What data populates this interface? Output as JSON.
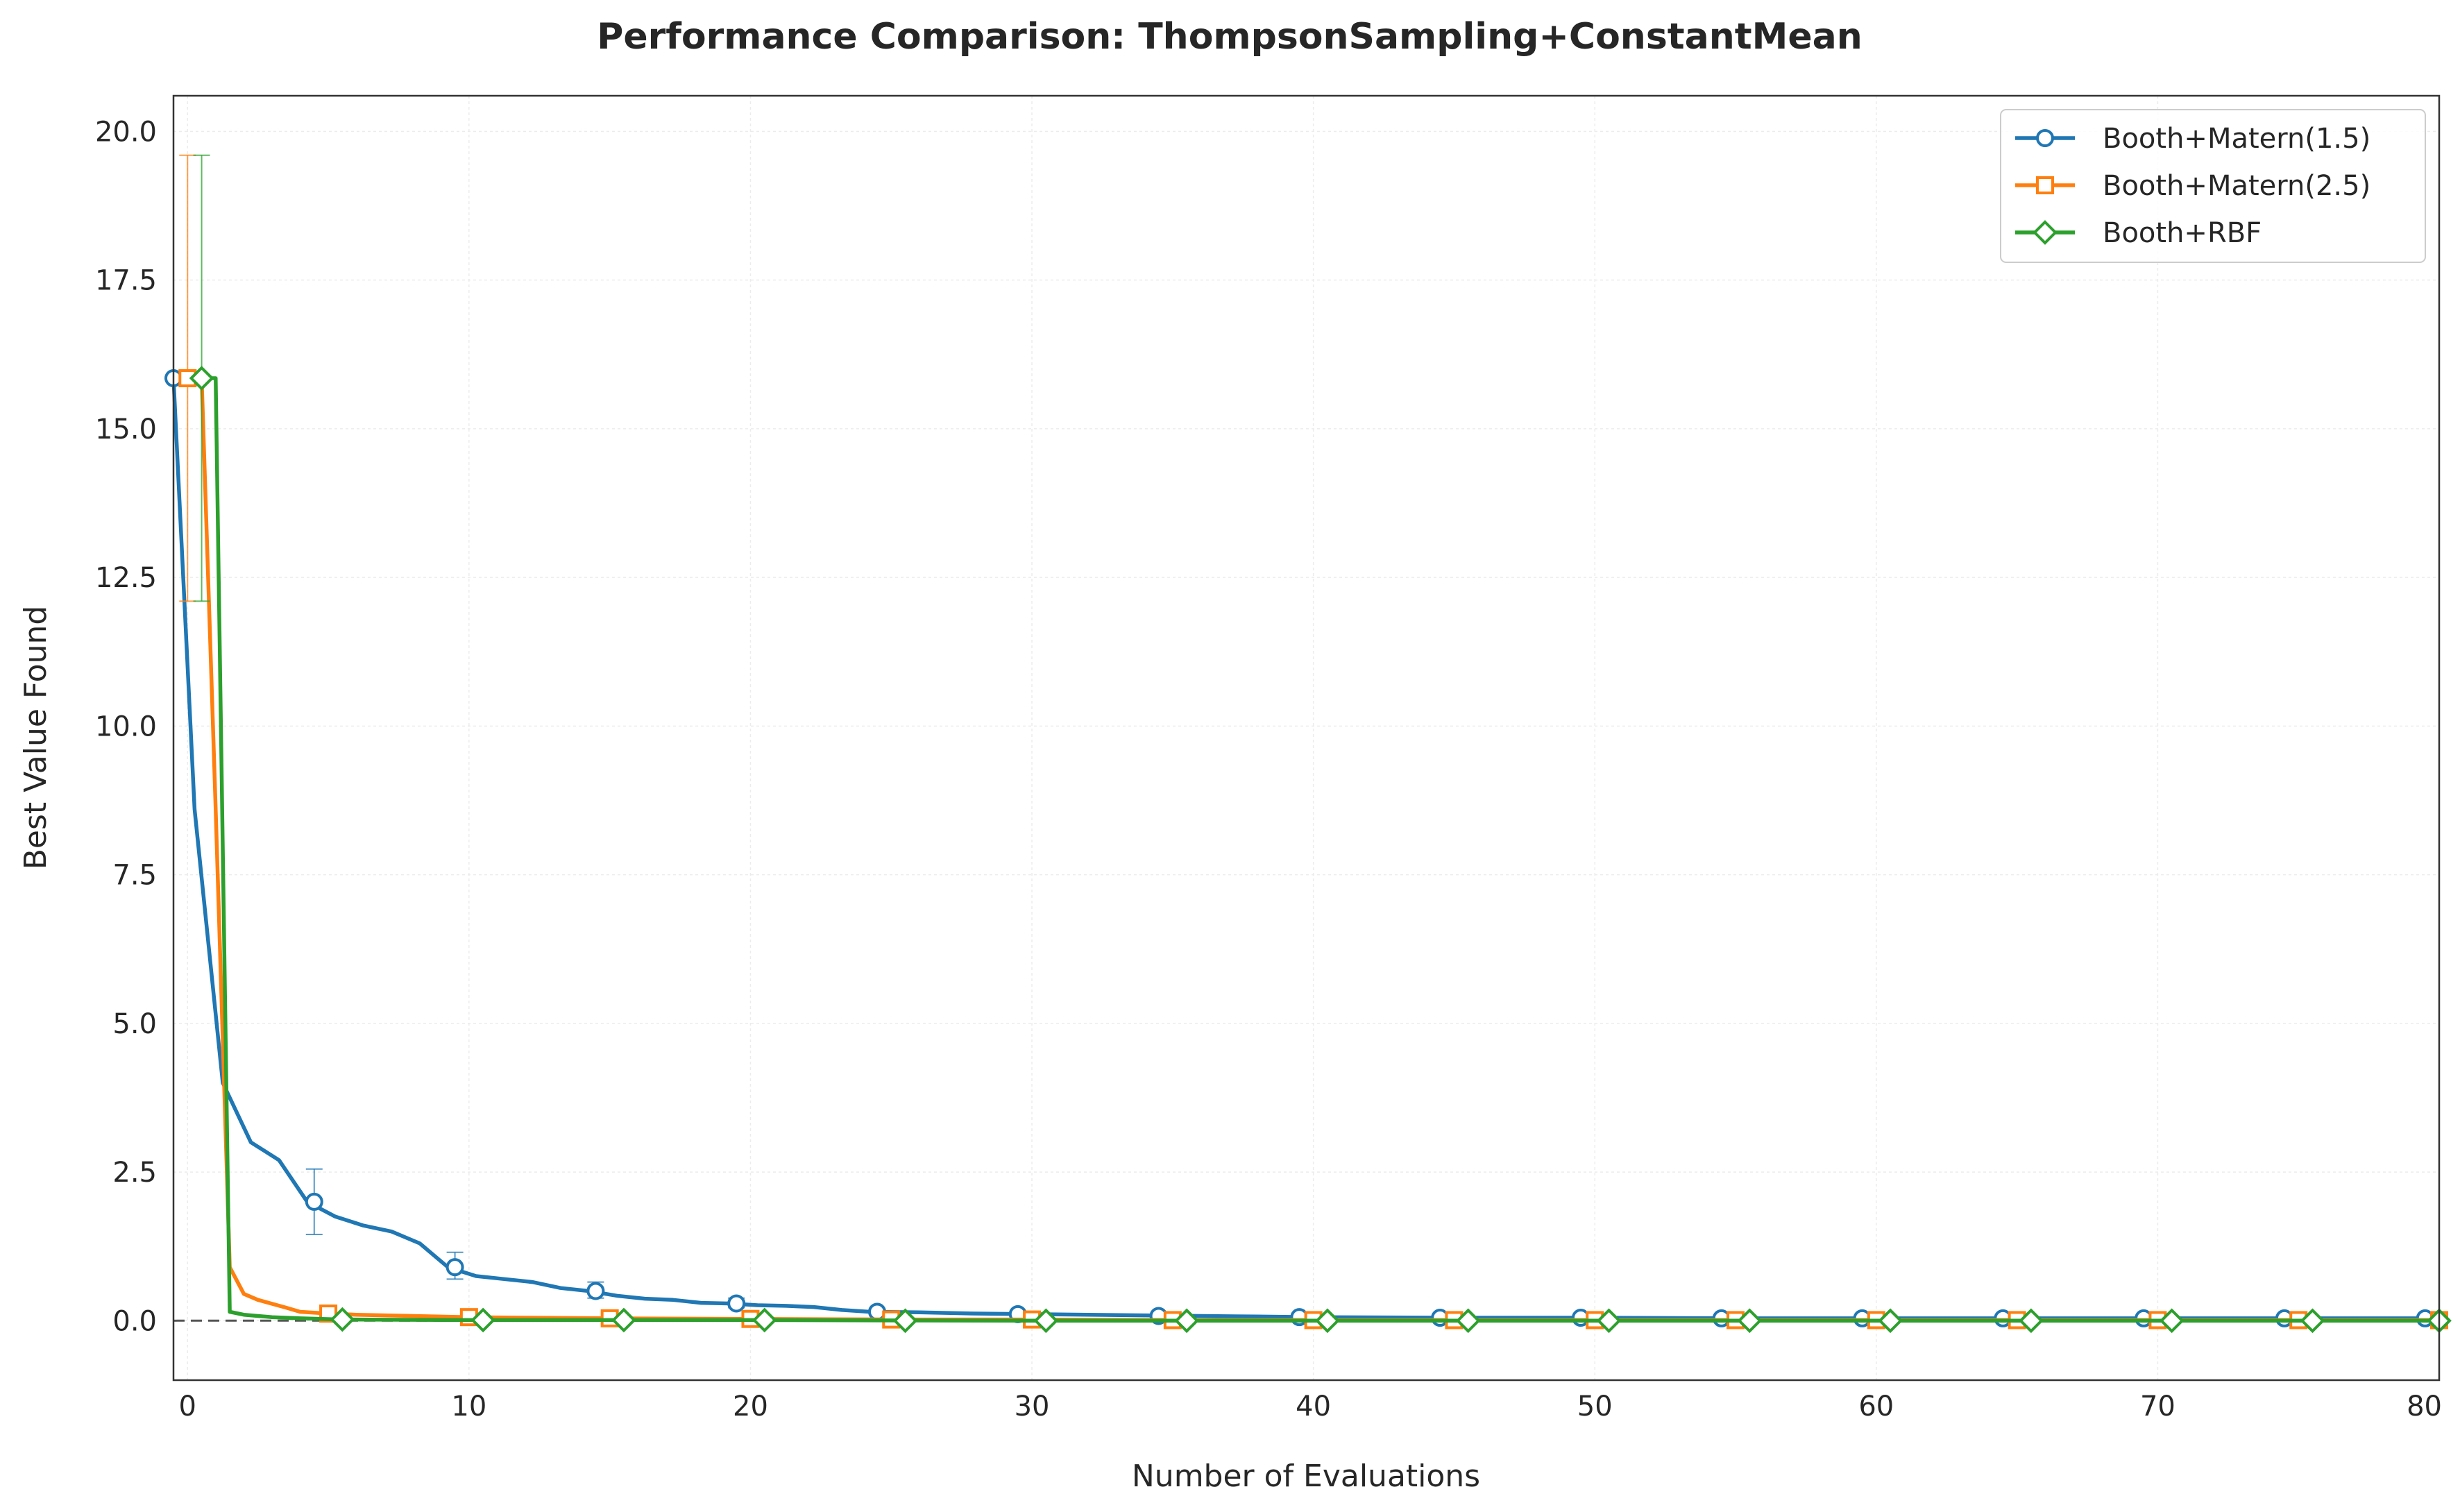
{
  "chart_data": {
    "type": "line",
    "title": "Performance Comparison: ThompsonSampling+ConstantMean",
    "xlabel": "Number of Evaluations",
    "ylabel": "Best Value Found",
    "xlim": [
      -0.5,
      80
    ],
    "ylim": [
      -1.0,
      20.6
    ],
    "xticks": [
      0,
      10,
      20,
      30,
      40,
      50,
      60,
      70,
      80
    ],
    "xtick_labels": [
      "0",
      "10",
      "20",
      "30",
      "40",
      "50",
      "60",
      "70",
      "80"
    ],
    "yticks": [
      0.0,
      2.5,
      5.0,
      7.5,
      10.0,
      12.5,
      15.0,
      17.5,
      20.0
    ],
    "ytick_labels": [
      "0.0",
      "2.5",
      "5.0",
      "7.5",
      "10.0",
      "12.5",
      "15.0",
      "17.5",
      "20.0"
    ],
    "grid": true,
    "legend_position": "top-right",
    "reference_line": {
      "y": 0.0,
      "style": "dashed"
    },
    "series": [
      {
        "name": "Booth+Matern(1.5)",
        "color": "#1f77b4",
        "marker": "circle",
        "x": [
          -0.5,
          0.25,
          1.25,
          2.25,
          3.25,
          4.25,
          5.25,
          6.25,
          7.25,
          8.25,
          9.25,
          10.25,
          11.25,
          12.25,
          13.25,
          14.25,
          15.25,
          16.25,
          17.25,
          18.25,
          19.25,
          20.25,
          21.25,
          22.25,
          23.25,
          24.25,
          26,
          28,
          30,
          32,
          34,
          36,
          38,
          40,
          45,
          50,
          55,
          60,
          65,
          70,
          75,
          80
        ],
        "y": [
          15.85,
          8.6,
          4.0,
          3.0,
          2.7,
          2.0,
          1.75,
          1.6,
          1.5,
          1.3,
          0.9,
          0.75,
          0.7,
          0.65,
          0.55,
          0.5,
          0.42,
          0.37,
          0.35,
          0.3,
          0.29,
          0.26,
          0.25,
          0.23,
          0.18,
          0.15,
          0.14,
          0.12,
          0.11,
          0.1,
          0.09,
          0.08,
          0.07,
          0.06,
          0.05,
          0.05,
          0.04,
          0.04,
          0.04,
          0.04,
          0.04,
          0.04
        ],
        "marker_x": [
          -0.5,
          4.5,
          9.5,
          14.5,
          19.5,
          24.5,
          29.5,
          34.5,
          39.5,
          44.5,
          49.5,
          54.5,
          59.5,
          64.5,
          69.5,
          74.5,
          79.5
        ],
        "marker_y": [
          15.85,
          2.0,
          0.9,
          0.5,
          0.29,
          0.15,
          0.11,
          0.08,
          0.06,
          0.05,
          0.05,
          0.04,
          0.04,
          0.04,
          0.04,
          0.04,
          0.04
        ],
        "errorbars": [
          {
            "x": 4.5,
            "y": 2.0,
            "low": 1.45,
            "high": 2.55
          },
          {
            "x": 9.5,
            "y": 0.9,
            "low": 0.7,
            "high": 1.15
          },
          {
            "x": 14.5,
            "y": 0.5,
            "low": 0.38,
            "high": 0.65
          },
          {
            "x": 19.5,
            "y": 0.29,
            "low": 0.22,
            "high": 0.38
          },
          {
            "x": 24.5,
            "y": 0.15,
            "low": 0.11,
            "high": 0.2
          }
        ]
      },
      {
        "name": "Booth+Matern(2.5)",
        "color": "#ff7f0e",
        "marker": "square",
        "x": [
          0.0,
          0.5,
          1.0,
          1.5,
          2.0,
          2.5,
          3.5,
          4.0,
          5.0,
          6.0,
          8.0,
          10.0,
          12.0,
          15.0,
          20.0,
          25.0,
          30.0,
          35.0,
          40.0,
          45.0,
          50.0,
          55.0,
          60.0,
          65.0,
          70.0,
          75.0,
          80.0
        ],
        "y": [
          15.85,
          15.85,
          8.6,
          0.9,
          0.45,
          0.35,
          0.22,
          0.15,
          0.12,
          0.1,
          0.08,
          0.06,
          0.05,
          0.04,
          0.03,
          0.02,
          0.02,
          0.01,
          0.01,
          0.01,
          0.01,
          0.01,
          0.01,
          0.01,
          0.01,
          0.01,
          0.01
        ],
        "marker_x": [
          0.0,
          5.0,
          10.0,
          15.0,
          20.0,
          25.0,
          30.0,
          35.0,
          40.0,
          45.0,
          50.0,
          55.0,
          60.0,
          65.0,
          70.0,
          75.0,
          80.0
        ],
        "marker_y": [
          15.85,
          0.12,
          0.06,
          0.04,
          0.03,
          0.02,
          0.02,
          0.01,
          0.01,
          0.01,
          0.01,
          0.01,
          0.01,
          0.01,
          0.01,
          0.01,
          0.01
        ],
        "errorbars": [
          {
            "x": 0.0,
            "y": 15.85,
            "low": 12.1,
            "high": 19.6
          }
        ]
      },
      {
        "name": "Booth+RBF",
        "color": "#2ca02c",
        "marker": "diamond",
        "x": [
          0.5,
          1.0,
          1.5,
          2.0,
          3.0,
          4.0,
          5.5,
          10.0,
          20.0,
          30.0,
          40.0,
          50.0,
          60.0,
          70.0,
          80.0
        ],
        "y": [
          15.85,
          15.85,
          0.15,
          0.1,
          0.06,
          0.04,
          0.02,
          0.01,
          0.01,
          0.0,
          0.0,
          0.0,
          0.0,
          0.0,
          0.0
        ],
        "marker_x": [
          0.5,
          5.5,
          10.5,
          15.5,
          20.5,
          25.5,
          30.5,
          35.5,
          40.5,
          45.5,
          50.5,
          55.5,
          60.5,
          65.5,
          70.5,
          75.5,
          80.0
        ],
        "marker_y": [
          15.85,
          0.02,
          0.01,
          0.01,
          0.01,
          0.0,
          0.0,
          0.0,
          0.0,
          0.0,
          0.0,
          0.0,
          0.0,
          0.0,
          0.0,
          0.0,
          0.0
        ],
        "errorbars": [
          {
            "x": 0.5,
            "y": 15.85,
            "low": 12.1,
            "high": 19.6
          }
        ]
      }
    ]
  }
}
